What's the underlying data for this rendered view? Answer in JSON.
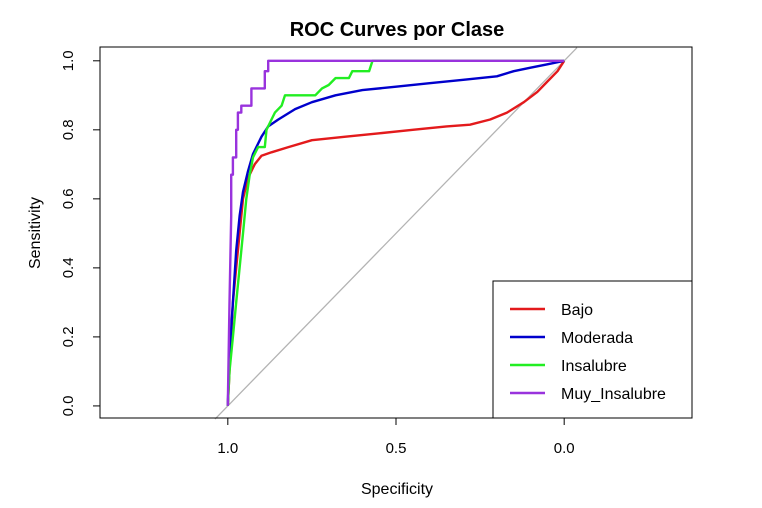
{
  "chart_data": {
    "type": "line",
    "title": "ROC Curves por Clase",
    "xlabel": "Specificity",
    "ylabel": "Sensitivity",
    "x_reversed": true,
    "xlim": [
      1.38,
      -0.38
    ],
    "ylim": [
      -0.035,
      1.04
    ],
    "x_ticks": [
      1.0,
      0.5,
      0.0
    ],
    "x_tick_labels": [
      "1.0",
      "0.5",
      "0.0"
    ],
    "y_ticks": [
      0.0,
      0.2,
      0.4,
      0.6,
      0.8,
      1.0
    ],
    "y_tick_labels": [
      "0.0",
      "0.2",
      "0.4",
      "0.6",
      "0.8",
      "1.0"
    ],
    "grid": false,
    "legend_position": "bottom-right",
    "reference_line": {
      "from": [
        1,
        0
      ],
      "to": [
        0,
        1
      ],
      "color": "#b3b3b3"
    },
    "series": [
      {
        "name": "Bajo",
        "color": "#e31a1c",
        "points": [
          [
            1.0,
            0.0
          ],
          [
            0.995,
            0.1
          ],
          [
            0.99,
            0.2
          ],
          [
            0.985,
            0.3
          ],
          [
            0.975,
            0.4
          ],
          [
            0.965,
            0.5
          ],
          [
            0.955,
            0.6
          ],
          [
            0.94,
            0.66
          ],
          [
            0.92,
            0.7
          ],
          [
            0.9,
            0.725
          ],
          [
            0.87,
            0.735
          ],
          [
            0.82,
            0.75
          ],
          [
            0.75,
            0.77
          ],
          [
            0.65,
            0.78
          ],
          [
            0.55,
            0.79
          ],
          [
            0.45,
            0.8
          ],
          [
            0.35,
            0.81
          ],
          [
            0.28,
            0.815
          ],
          [
            0.22,
            0.83
          ],
          [
            0.17,
            0.85
          ],
          [
            0.12,
            0.88
          ],
          [
            0.08,
            0.91
          ],
          [
            0.05,
            0.94
          ],
          [
            0.02,
            0.97
          ],
          [
            0.0,
            1.0
          ]
        ]
      },
      {
        "name": "Moderada",
        "color": "#0000cc",
        "points": [
          [
            1.0,
            0.0
          ],
          [
            0.995,
            0.15
          ],
          [
            0.985,
            0.3
          ],
          [
            0.975,
            0.45
          ],
          [
            0.965,
            0.55
          ],
          [
            0.955,
            0.62
          ],
          [
            0.94,
            0.68
          ],
          [
            0.925,
            0.73
          ],
          [
            0.9,
            0.78
          ],
          [
            0.88,
            0.81
          ],
          [
            0.85,
            0.83
          ],
          [
            0.8,
            0.86
          ],
          [
            0.75,
            0.88
          ],
          [
            0.68,
            0.9
          ],
          [
            0.6,
            0.915
          ],
          [
            0.5,
            0.925
          ],
          [
            0.4,
            0.935
          ],
          [
            0.3,
            0.945
          ],
          [
            0.2,
            0.955
          ],
          [
            0.15,
            0.97
          ],
          [
            0.1,
            0.98
          ],
          [
            0.05,
            0.99
          ],
          [
            0.0,
            1.0
          ]
        ]
      },
      {
        "name": "Insalubre",
        "color": "#22ee22",
        "points": [
          [
            1.0,
            0.0
          ],
          [
            0.995,
            0.1
          ],
          [
            0.985,
            0.2
          ],
          [
            0.975,
            0.3
          ],
          [
            0.965,
            0.4
          ],
          [
            0.955,
            0.5
          ],
          [
            0.945,
            0.6
          ],
          [
            0.935,
            0.67
          ],
          [
            0.925,
            0.72
          ],
          [
            0.91,
            0.75
          ],
          [
            0.89,
            0.75
          ],
          [
            0.885,
            0.8
          ],
          [
            0.87,
            0.83
          ],
          [
            0.86,
            0.85
          ],
          [
            0.84,
            0.87
          ],
          [
            0.83,
            0.9
          ],
          [
            0.74,
            0.9
          ],
          [
            0.72,
            0.92
          ],
          [
            0.7,
            0.93
          ],
          [
            0.68,
            0.95
          ],
          [
            0.64,
            0.95
          ],
          [
            0.63,
            0.97
          ],
          [
            0.58,
            0.97
          ],
          [
            0.57,
            1.0
          ],
          [
            0.0,
            1.0
          ]
        ]
      },
      {
        "name": "Muy_Insalubre",
        "color": "#9933dd",
        "points": [
          [
            1.0,
            0.0
          ],
          [
            0.995,
            0.3
          ],
          [
            0.99,
            0.55
          ],
          [
            0.99,
            0.67
          ],
          [
            0.985,
            0.67
          ],
          [
            0.985,
            0.72
          ],
          [
            0.975,
            0.72
          ],
          [
            0.975,
            0.8
          ],
          [
            0.97,
            0.8
          ],
          [
            0.97,
            0.85
          ],
          [
            0.96,
            0.85
          ],
          [
            0.96,
            0.87
          ],
          [
            0.93,
            0.87
          ],
          [
            0.93,
            0.92
          ],
          [
            0.89,
            0.92
          ],
          [
            0.89,
            0.97
          ],
          [
            0.88,
            0.97
          ],
          [
            0.88,
            1.0
          ],
          [
            0.0,
            1.0
          ]
        ]
      }
    ]
  }
}
